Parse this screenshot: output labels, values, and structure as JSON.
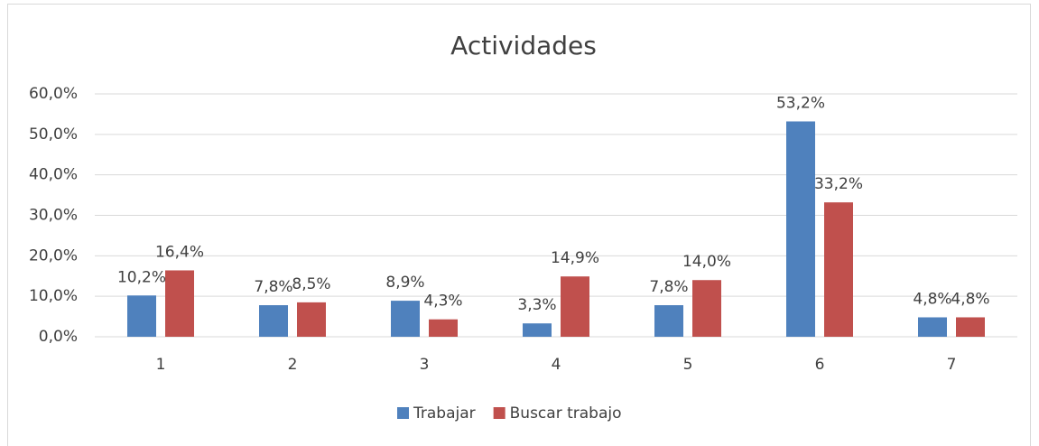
{
  "chart_data": {
    "type": "bar",
    "title": "Actividades",
    "categories": [
      "1",
      "2",
      "3",
      "4",
      "5",
      "6",
      "7"
    ],
    "series": [
      {
        "name": "Trabajar",
        "color": "#4f81bd",
        "values": [
          10.2,
          7.8,
          8.9,
          3.3,
          7.8,
          53.2,
          4.8
        ],
        "value_labels": [
          "10,2%",
          "7,8%",
          "8,9%",
          "3,3%",
          "7,8%",
          "53,2%",
          "4,8%"
        ]
      },
      {
        "name": "Buscar trabajo",
        "color": "#c0504d",
        "values": [
          16.4,
          8.5,
          4.3,
          14.9,
          14.0,
          33.2,
          4.8
        ],
        "value_labels": [
          "16,4%",
          "8,5%",
          "4,3%",
          "14,9%",
          "14,0%",
          "33,2%",
          "4,8%"
        ]
      }
    ],
    "ylim": [
      0,
      60
    ],
    "yticks": [
      {
        "value": 0,
        "label": "0,0%"
      },
      {
        "value": 10,
        "label": "10,0%"
      },
      {
        "value": 20,
        "label": "20,0%"
      },
      {
        "value": 30,
        "label": "30,0%"
      },
      {
        "value": 40,
        "label": "40,0%"
      },
      {
        "value": 50,
        "label": "50,0%"
      },
      {
        "value": 60,
        "label": "60,0%"
      }
    ],
    "grid": true,
    "legend": "bottom"
  }
}
